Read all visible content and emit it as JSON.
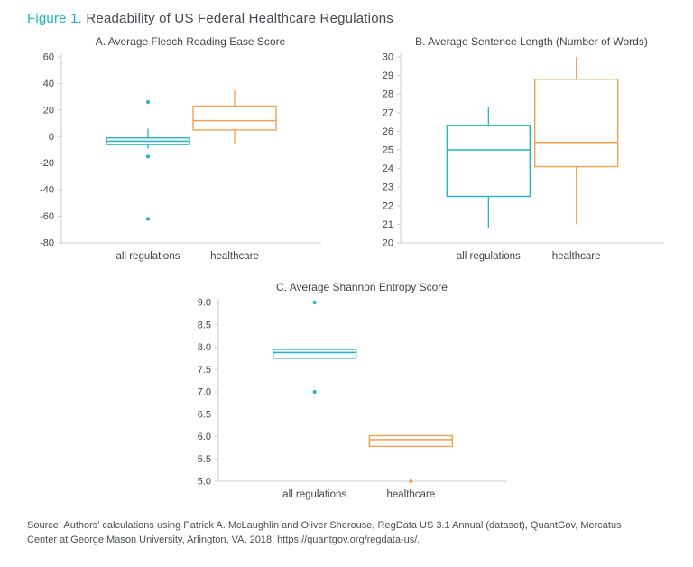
{
  "header": {
    "figure_label": "Figure 1.",
    "title": " Readability of US Federal Healthcare Regulations"
  },
  "colors": {
    "teal": "#22b5c5",
    "orange": "#f5a04f",
    "axis": "#c9cdd1",
    "text": "#3f4448"
  },
  "source": "Source: Authors' calculations using Patrick A. McLaughlin and Oliver Sherouse, RegData US 3.1 Annual (dataset), QuantGov, Mercatus Center at George Mason University, Arlington, VA, 2018, https://quantgov.org/regdata-us/.",
  "chart_data": [
    {
      "type": "box",
      "title": "A. Average Flesch Reading Ease Score",
      "ylim": [
        -80,
        60
      ],
      "ytick_step": 20,
      "ytick_decimals": 0,
      "grid": false,
      "legend": false,
      "categories": [
        "all regulations",
        "healthcare"
      ],
      "series": [
        {
          "name": "all regulations",
          "color": "#22b5c5",
          "q1": -6,
          "median": -3.5,
          "q3": -1,
          "whisker_low": -9,
          "whisker_high": 6,
          "outliers": [
            26,
            -15,
            -62
          ]
        },
        {
          "name": "healthcare",
          "color": "#f5a04f",
          "q1": 5,
          "median": 12,
          "q3": 23,
          "whisker_low": -6,
          "whisker_high": 35,
          "outliers": []
        }
      ]
    },
    {
      "type": "box",
      "title": "B. Average Sentence Length (Number of Words)",
      "ylim": [
        20,
        30
      ],
      "ytick_step": 1,
      "ytick_decimals": 0,
      "grid": false,
      "legend": false,
      "categories": [
        "all regulations",
        "healthcare"
      ],
      "series": [
        {
          "name": "all regulations",
          "color": "#22b5c5",
          "q1": 22.5,
          "median": 25.0,
          "q3": 26.3,
          "whisker_low": 20.8,
          "whisker_high": 27.3,
          "outliers": []
        },
        {
          "name": "healthcare",
          "color": "#f5a04f",
          "q1": 24.1,
          "median": 25.4,
          "q3": 28.8,
          "whisker_low": 21.0,
          "whisker_high": 30.0,
          "outliers": []
        }
      ]
    },
    {
      "type": "box",
      "title": "C. Average Shannon Entropy Score",
      "ylim": [
        5,
        9
      ],
      "ytick_step": 0.5,
      "ytick_decimals": 1,
      "grid": false,
      "legend": false,
      "categories": [
        "all regulations",
        "healthcare"
      ],
      "series": [
        {
          "name": "all regulations",
          "color": "#22b5c5",
          "q1": 7.75,
          "median": 7.88,
          "q3": 7.95,
          "whisker_low": 7.75,
          "whisker_high": 7.95,
          "outliers": [
            9.0,
            7.0
          ]
        },
        {
          "name": "healthcare",
          "color": "#f5a04f",
          "q1": 5.78,
          "median": 5.93,
          "q3": 6.02,
          "whisker_low": 5.78,
          "whisker_high": 6.02,
          "outliers": [
            5.0
          ]
        }
      ]
    }
  ]
}
